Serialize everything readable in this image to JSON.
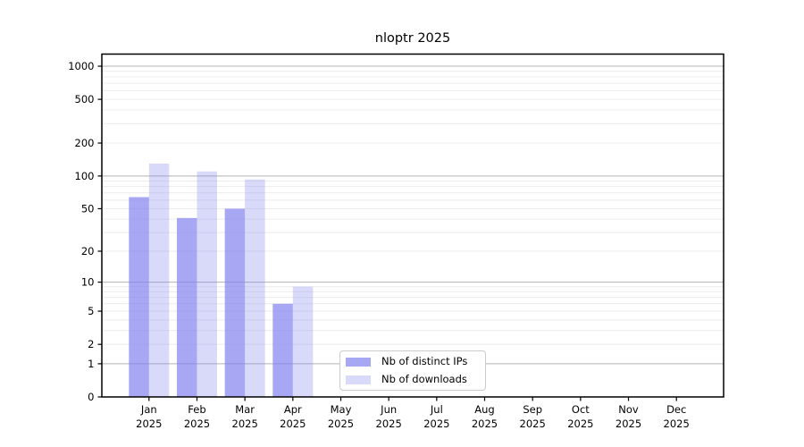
{
  "chart_data": {
    "type": "bar",
    "title": "nloptr 2025",
    "categories": [
      "Jan",
      "Feb",
      "Mar",
      "Apr",
      "May",
      "Jun",
      "Jul",
      "Aug",
      "Sep",
      "Oct",
      "Nov",
      "Dec"
    ],
    "year_label": "2025",
    "series": [
      {
        "name": "Nb of distinct IPs",
        "color": "rgba(130,130,240,0.7)",
        "values": [
          64,
          41,
          50,
          6,
          null,
          null,
          null,
          null,
          null,
          null,
          null,
          null
        ]
      },
      {
        "name": "Nb of downloads",
        "color": "rgba(130,130,240,0.3)",
        "values": [
          130,
          110,
          93,
          9,
          null,
          null,
          null,
          null,
          null,
          null,
          null,
          null
        ]
      }
    ],
    "yticks": [
      0,
      1,
      2,
      5,
      10,
      20,
      50,
      100,
      200,
      500,
      1000
    ],
    "scale": "log10(1+x)",
    "ylim": [
      0,
      1290
    ],
    "xlabel": "",
    "ylabel": "",
    "grid": true,
    "legend_position": "lower center-left inside plot",
    "colors": {
      "major_grid": "#b3b3b3",
      "minor_grid": "#ececec",
      "spine": "#000000",
      "tick_label": "#000000",
      "legend_border": "#cccccc"
    }
  }
}
